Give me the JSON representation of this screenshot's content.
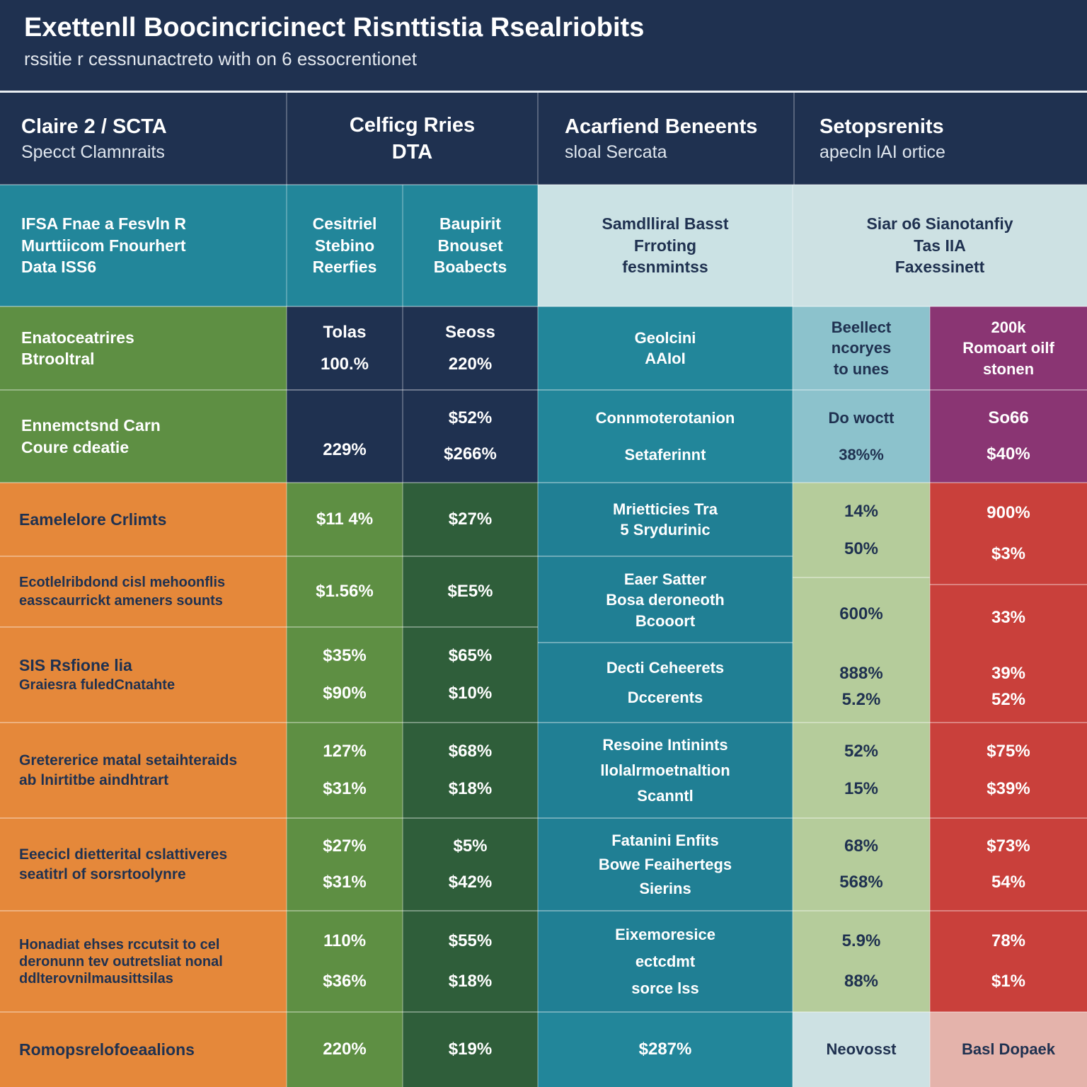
{
  "header": {
    "title": "Exettenll Boocincricinect Risnttistia Rsealriobits",
    "subtitle": "rssitie r cessnunactreto with on 6 essocrentionet"
  },
  "columns": [
    {
      "title": "Claire 2 / SCTA",
      "subtitle": "Specct Clamnraits"
    },
    {
      "title": "Celficg Rries",
      "subtitle": "DTA"
    },
    {
      "title": "Acarfiend Beneents",
      "subtitle": "sloal Sercata"
    },
    {
      "title": "Setopsrenits",
      "subtitle": "apecln lAI ortice"
    }
  ],
  "row_subheader": {
    "label": [
      "IFSA Fnae a Fesvln R",
      "Murttiicom Fnourhert",
      "Data ISS6"
    ],
    "b1": [
      "Cesitriel",
      "Stebino",
      "Reerfies"
    ],
    "b2": [
      "Baupirit",
      "Bnouset",
      "Boabects"
    ],
    "c": [
      "Samdlliral Basst",
      "Frroting",
      "fesnmintss"
    ],
    "d": [
      "Siar o6 Sianotanfiy",
      "Tas IIA",
      "Faxessinett"
    ]
  },
  "row_totals": {
    "label": [
      "Enatoceatrires",
      "Btrooltral"
    ],
    "b1": [
      "Tolas",
      "100.%"
    ],
    "b2": [
      "Seoss",
      "220%"
    ],
    "c": [
      "Geolcini",
      "AAIoI"
    ],
    "d1": [
      "Beellect",
      "ncoryes",
      "to unes"
    ],
    "d2": [
      "200k",
      "Romoart oilf",
      "stonen"
    ]
  },
  "row_enhanced": {
    "label": [
      "Ennemctsnd Carn",
      "Coure cdeatie"
    ],
    "b1": [
      "229%"
    ],
    "b2": [
      "$52%",
      "$266%"
    ],
    "c": [
      "Connmoterotanion",
      "Setaferinnt"
    ],
    "d1": [
      "Do woctt",
      "38%%"
    ],
    "d2": [
      "So66",
      "$40%"
    ]
  },
  "rows": [
    {
      "label": [
        "Eamelelore Crlimts"
      ],
      "b1": [
        "$11 4%"
      ],
      "b2": [
        "$27%"
      ],
      "c": [
        "Mrietticies Tra",
        "5 Srydurinic"
      ],
      "d1": [
        "14%",
        "50%"
      ],
      "d2": [
        "900%",
        "$3%"
      ]
    },
    {
      "label": [
        "Ecotlelribdond cisl mehoonflis",
        "easscaurrickt ameners sounts"
      ],
      "b1": [
        "$1.56%"
      ],
      "b2": [
        "$E5%"
      ],
      "c": [
        "Eaer Satter",
        "Bosa deroneoth",
        "Bcooort"
      ],
      "d1": [
        "600%"
      ],
      "d2": [
        "33%"
      ]
    },
    {
      "label": [
        "SIS Rsfione lia",
        "Graiesra fuledCnatahte"
      ],
      "b1": [
        "$35%",
        "$90%"
      ],
      "b2": [
        "$65%",
        "$10%"
      ],
      "c": [
        "Decti Ceheerets",
        "Dccerents"
      ],
      "d1": [
        "888%",
        "5.2%"
      ],
      "d2": [
        "39%",
        "52%"
      ]
    },
    {
      "label": [
        "Gretererice matal setaihteraids",
        "ab lnirtitbe aindhtrart"
      ],
      "b1": [
        "127%",
        "$31%"
      ],
      "b2": [
        "$68%",
        "$18%"
      ],
      "c": [
        "Resoine Intinints",
        "llolalrmoetnaltion",
        "Scanntl"
      ],
      "d1": [
        "52%",
        "15%"
      ],
      "d2": [
        "$75%",
        "$39%"
      ]
    },
    {
      "label": [
        "Eeecicl dietterital cslattiveres",
        "seatitrl of sorsrtoolynre"
      ],
      "b1": [
        "$27%",
        "$31%"
      ],
      "b2": [
        "$5%",
        "$42%"
      ],
      "c": [
        "Fatanini Enfits",
        "Bowe Feaihertegs",
        "Sierins"
      ],
      "d1": [
        "68%",
        "568%"
      ],
      "d2": [
        "$73%",
        "54%"
      ]
    },
    {
      "label": [
        "Honadiat ehses rccutsit to cel",
        "deronunn tev outretsliat nonal",
        "ddlterovnilmausittsilas"
      ],
      "b1": [
        "110%",
        "$36%"
      ],
      "b2": [
        "$55%",
        "$18%"
      ],
      "c": [
        "Eixemoresice",
        "ectcdmt",
        "sorce lss"
      ],
      "d1": [
        "5.9%",
        "88%"
      ],
      "d2": [
        "78%",
        "$1%"
      ]
    },
    {
      "label": [
        "Romopsrelofoeaalions"
      ],
      "b1": [
        "220%"
      ],
      "b2": [
        "$19%"
      ],
      "c": [
        "$287%"
      ],
      "d1": [
        "Neovosst"
      ],
      "d2": [
        "Basl Dopaek"
      ]
    }
  ],
  "colors": {
    "navy": "#1f3150",
    "teal": "#22869a",
    "green": "#5e8f43",
    "dark_green": "#2f5e3a",
    "orange": "#e5883a",
    "red": "#c9403b",
    "purple": "#8a3573",
    "sage": "#b5cc9b"
  }
}
